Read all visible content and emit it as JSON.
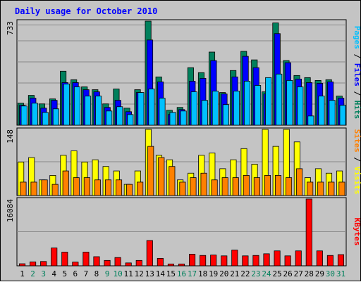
{
  "chart_data": {
    "type": "bar",
    "title": "Daily usage for October 2010",
    "days": [
      "1",
      "2",
      "3",
      "4",
      "5",
      "6",
      "7",
      "8",
      "9",
      "10",
      "11",
      "12",
      "13",
      "14",
      "15",
      "16",
      "17",
      "18",
      "19",
      "20",
      "21",
      "22",
      "23",
      "24",
      "25",
      "26",
      "27",
      "28",
      "29",
      "30",
      "31"
    ],
    "weekend_days": [
      "2",
      "3",
      "9",
      "10",
      "16",
      "17",
      "23",
      "24",
      "30",
      "31"
    ],
    "panels": [
      {
        "id": "top",
        "max_label": "733",
        "ymax": 733,
        "legend": [
          "Pages",
          "Files",
          "Hits"
        ],
        "series": [
          {
            "name": "Hits",
            "color": "#00805c",
            "values": [
              155,
              210,
              150,
              185,
              380,
              320,
              270,
              250,
              150,
              255,
              120,
              250,
              733,
              340,
              105,
              125,
              405,
              370,
              515,
              230,
              385,
              520,
              460,
              235,
              720,
              455,
              350,
              335,
              315,
              320,
              205
            ]
          },
          {
            "name": "Files",
            "color": "#0000ff",
            "values": [
              140,
              190,
              120,
              175,
              300,
              300,
              250,
              235,
              125,
              175,
              95,
              230,
              600,
              305,
              75,
              110,
              310,
              330,
              455,
              220,
              340,
              485,
              405,
              220,
              645,
              440,
              325,
              300,
              295,
              305,
              190
            ]
          },
          {
            "name": "Pages",
            "color": "#00c0ff",
            "values": [
              135,
              155,
              90,
              115,
              290,
              270,
              205,
              205,
              100,
              130,
              75,
              230,
              255,
              190,
              90,
              100,
              235,
              175,
              240,
              145,
              240,
              310,
              280,
              335,
              360,
              315,
              270,
              65,
              205,
              175,
              140
            ]
          }
        ]
      },
      {
        "id": "middle",
        "max_label": "148",
        "ymax": 148,
        "legend": [
          "Sites",
          "Visits"
        ],
        "series": [
          {
            "name": "Visits",
            "color": "#ffff00",
            "values": [
              75,
              85,
              35,
              45,
              90,
              100,
              75,
              80,
              65,
              55,
              25,
              55,
              148,
              90,
              80,
              35,
              50,
              90,
              95,
              60,
              80,
              105,
              70,
              148,
              110,
              148,
              120,
              40,
              60,
              50,
              55
            ]
          },
          {
            "name": "Sites",
            "color": "#ff8000",
            "values": [
              30,
              30,
              35,
              25,
              55,
              40,
              40,
              35,
              35,
              35,
              25,
              30,
              110,
              85,
              65,
              30,
              40,
              50,
              35,
              40,
              40,
              45,
              40,
              45,
              45,
              40,
              60,
              30,
              30,
              30,
              30
            ]
          }
        ]
      },
      {
        "id": "bottom",
        "max_label": "16084",
        "ymax": 16084,
        "legend": [
          "KBytes"
        ],
        "series": [
          {
            "name": "KBytes",
            "color": "#ff0000",
            "values": [
              500,
              950,
              1050,
              4300,
              3300,
              900,
              3300,
              2200,
              1300,
              2000,
              700,
              1300,
              6100,
              1800,
              450,
              450,
              2800,
              2500,
              2600,
              2400,
              3800,
              2400,
              2500,
              2900,
              3600,
              2400,
              3600,
              16084,
              3600,
              2500,
              2700
            ]
          }
        ]
      }
    ]
  },
  "colors": {
    "background": "#c4c4c4",
    "plot_background": "#c4c4c4",
    "gridline": "#888888",
    "title_color": "#0000ff",
    "weekday_label": "#000000",
    "weekend_label": "#00805c",
    "pages_label": "#00c0ff",
    "files_label": "#0000ff",
    "hits_label": "#00805c",
    "sites_label": "#ff8000",
    "visits_label": "#ffff00",
    "kbytes_label": "#ff0000"
  }
}
